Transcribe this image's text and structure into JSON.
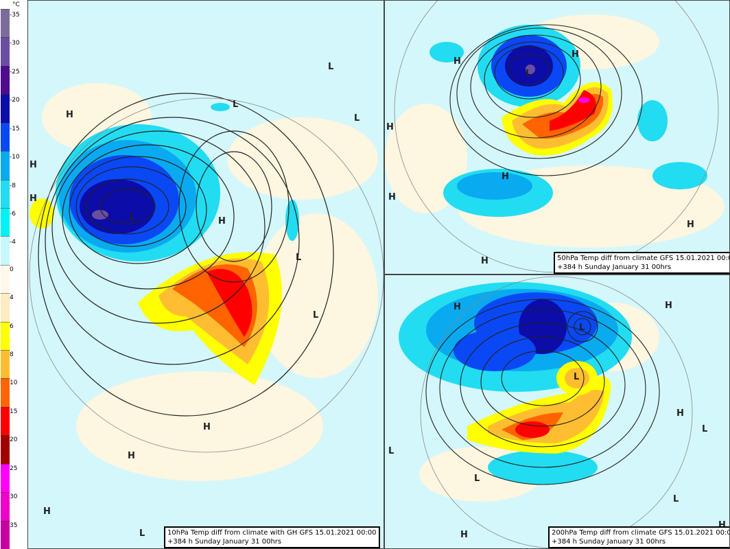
{
  "legend": {
    "unit": "°C",
    "labels": [
      "-35",
      "-30",
      "-25",
      "-20",
      "-15",
      "-10",
      "-8",
      "-6",
      "-4",
      "0",
      "4",
      "6",
      "8",
      "10",
      "15",
      "20",
      "25",
      "30",
      "35"
    ],
    "colors": [
      "#7c6c9c",
      "#6c4ea0",
      "#4e0c8c",
      "#0c0ca8",
      "#0a48f5",
      "#0aaaf0",
      "#22dcf2",
      "#00f2f2",
      "#c8f8ff",
      "#fff8e8",
      "#ffecc2",
      "#ffff00",
      "#ffbe32",
      "#ff6400",
      "#ff0000",
      "#a00000",
      "#ff00ff",
      "#f000c8",
      "#c800a0"
    ]
  },
  "panels": [
    {
      "caption_line1": "10hPa Temp diff from climate with GH GFS 15.01.2021 00:00",
      "caption_line2": "+384 h Sunday January 31 00hrs",
      "markers": [
        "H",
        "H",
        "L",
        "L",
        "L",
        "H",
        "H",
        "H",
        "H",
        "L",
        "L",
        "L",
        "H",
        "L"
      ]
    },
    {
      "caption_line1": "50hPa Temp diff from climate GFS 15.01.2021 00:00",
      "caption_line2": "+384 h Sunday January 31 00hrs",
      "markers": [
        "H",
        "H",
        "L",
        "H",
        "H",
        "H",
        "H",
        "H"
      ]
    },
    {
      "caption_line1": "200hPa Temp diff from climate GFS 15.01.2021 00:00",
      "caption_line2": "+384 h Sunday January 31 00hrs",
      "markers": [
        "H",
        "L",
        "H",
        "H",
        "L",
        "L",
        "L",
        "L",
        "H",
        "L",
        "H"
      ]
    }
  ]
}
